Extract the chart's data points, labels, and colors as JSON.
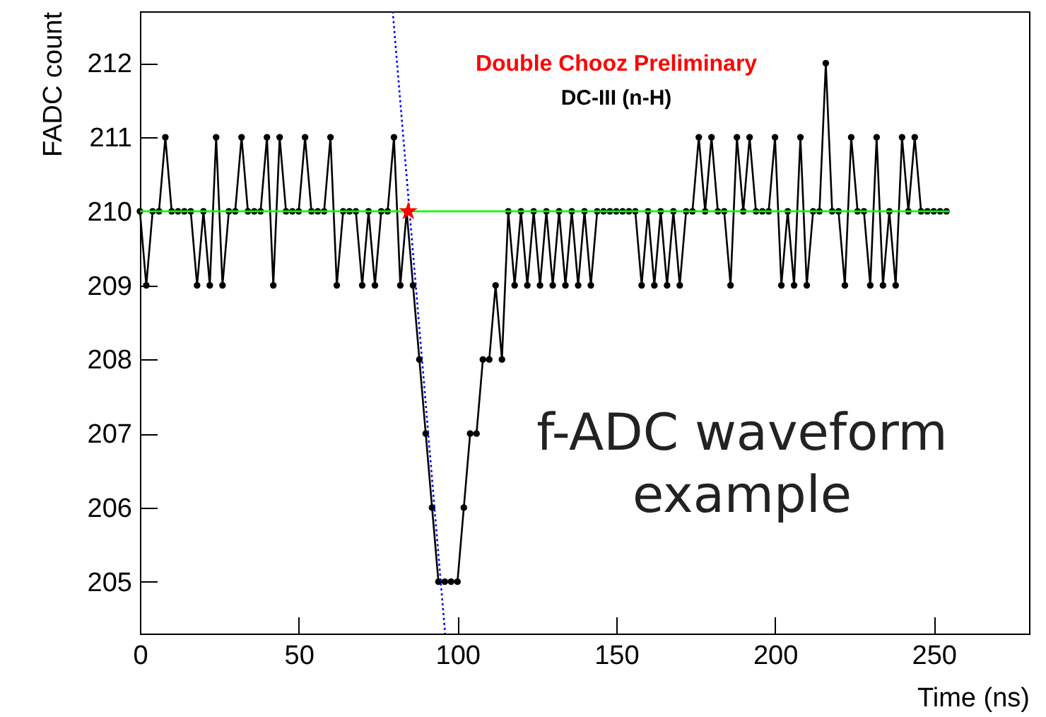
{
  "chart_data": {
    "type": "line",
    "xlabel": "Time (ns)",
    "ylabel": "FADC count",
    "xlim": [
      0,
      280
    ],
    "xticks": [
      0,
      50,
      100,
      150,
      200,
      250
    ],
    "ylim": [
      204.3,
      212.7
    ],
    "yticks": [
      205,
      206,
      207,
      208,
      209,
      210,
      211,
      212
    ],
    "grid": false,
    "annotations": [
      "Double Chooz Preliminary",
      "DC-III (n-H)",
      "f-ADC waveform example"
    ],
    "series": [
      {
        "type": "line",
        "color": "#000000",
        "marker": "circle",
        "x": [
          0,
          2,
          4,
          6,
          8,
          10,
          12,
          14,
          16,
          18,
          20,
          22,
          24,
          26,
          28,
          30,
          32,
          34,
          36,
          38,
          40,
          42,
          44,
          46,
          48,
          50,
          52,
          54,
          56,
          58,
          60,
          62,
          64,
          66,
          68,
          70,
          72,
          74,
          76,
          78,
          80,
          82,
          84,
          86,
          88,
          90,
          92,
          94,
          96,
          98,
          100,
          102,
          104,
          106,
          108,
          110,
          112,
          114,
          116,
          118,
          120,
          122,
          124,
          126,
          128,
          130,
          132,
          134,
          136,
          138,
          140,
          142,
          144,
          146,
          148,
          150,
          152,
          154,
          156,
          158,
          160,
          162,
          164,
          166,
          168,
          170,
          172,
          174,
          176,
          178,
          180,
          182,
          184,
          186,
          188,
          190,
          192,
          194,
          196,
          198,
          200,
          202,
          204,
          206,
          208,
          210,
          212,
          214,
          216,
          218,
          220,
          222,
          224,
          226,
          228,
          230,
          232,
          234,
          236,
          238,
          240,
          242,
          244,
          246,
          248,
          250,
          252,
          254
        ],
        "values": [
          210,
          209,
          210,
          210,
          211,
          210,
          210,
          210,
          210,
          209,
          210,
          209,
          211,
          209,
          210,
          210,
          211,
          210,
          210,
          210,
          211,
          209,
          211,
          210,
          210,
          210,
          211,
          210,
          210,
          210,
          211,
          209,
          210,
          210,
          210,
          209,
          210,
          209,
          210,
          210,
          211,
          209,
          210,
          209,
          208,
          207,
          206,
          205,
          205,
          205,
          205,
          206,
          207,
          207,
          208,
          208,
          209,
          208,
          210,
          209,
          210,
          209,
          210,
          209,
          210,
          209,
          210,
          209,
          210,
          209,
          210,
          209,
          210,
          210,
          210,
          210,
          210,
          210,
          210,
          209,
          210,
          209,
          210,
          209,
          210,
          209,
          210,
          210,
          211,
          210,
          211,
          210,
          210,
          209,
          211,
          210,
          211,
          210,
          210,
          210,
          211,
          209,
          210,
          209,
          211,
          209,
          210,
          210,
          212,
          210,
          210,
          209,
          211,
          210,
          210,
          209,
          211,
          209,
          210,
          209,
          211,
          210,
          211,
          210,
          210,
          210,
          210,
          210
        ]
      },
      {
        "type": "line",
        "color": "#00ff00",
        "marker": "none",
        "x": [
          0,
          255
        ],
        "values": [
          210,
          210
        ]
      },
      {
        "type": "line",
        "color": "#0000ff",
        "marker": "none",
        "line_style": "dotted",
        "x": [
          79.6,
          96.1
        ],
        "values": [
          212.7,
          204.3
        ]
      },
      {
        "type": "scatter",
        "color": "#ff0000",
        "marker": "star",
        "x": [
          84.5
        ],
        "values": [
          210
        ]
      }
    ]
  }
}
